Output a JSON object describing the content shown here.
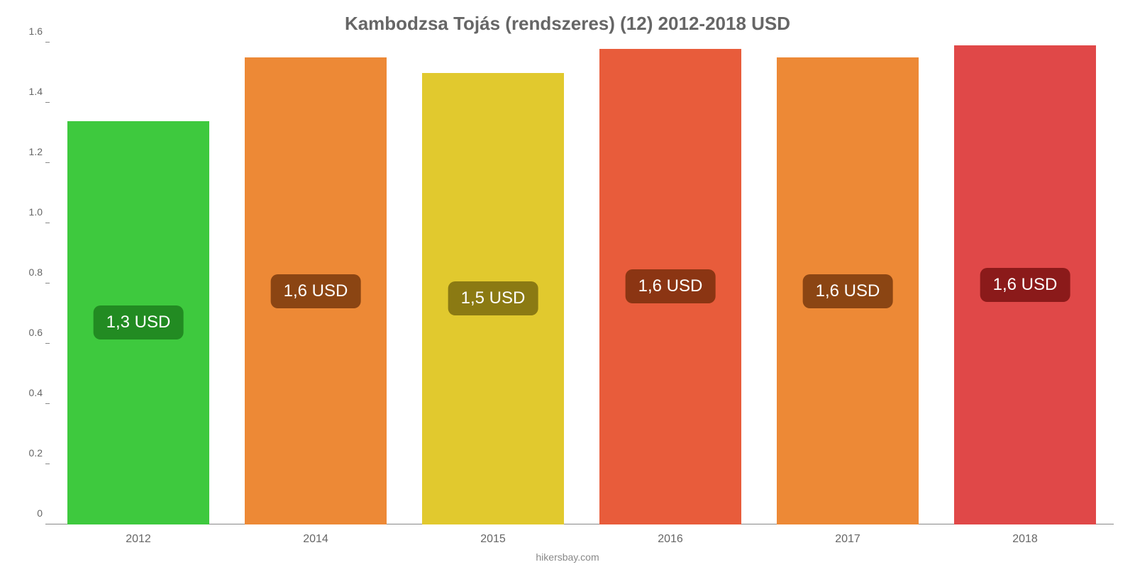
{
  "chart": {
    "type": "bar",
    "title": "Kambodzsa Tojás (rendszeres) (12) 2012-2018 USD",
    "title_fontsize": 26,
    "title_color": "#666666",
    "background_color": "#ffffff",
    "source": "hikersbay.com",
    "source_fontsize": 14,
    "source_color": "#888888",
    "y_axis": {
      "min": 0,
      "max": 1.6,
      "ticks": [
        0,
        0.2,
        0.4,
        0.6,
        0.8,
        1.0,
        1.2,
        1.4,
        1.6
      ],
      "tick_labels": [
        "0",
        "0.2",
        "0.4",
        "0.6",
        "0.8",
        "1.0",
        "1.2",
        "1.4",
        "1.6"
      ],
      "label_fontsize": 14,
      "label_color": "#666666",
      "tick_color": "#888888"
    },
    "x_axis": {
      "label_fontsize": 16,
      "label_color": "#666666"
    },
    "baseline_color": "#888888",
    "bar_width_pct": 80,
    "value_label_fontsize": 24,
    "categories": [
      "2012",
      "2014",
      "2015",
      "2016",
      "2017",
      "2018"
    ],
    "values": [
      1.34,
      1.55,
      1.5,
      1.58,
      1.55,
      1.59
    ],
    "value_labels": [
      "1,3 USD",
      "1,6 USD",
      "1,5 USD",
      "1,6 USD",
      "1,6 USD",
      "1,6 USD"
    ],
    "bar_colors": [
      "#3ec93e",
      "#ed8936",
      "#e1c92e",
      "#e85c3b",
      "#ed8936",
      "#e04848"
    ],
    "label_bg_colors": [
      "#228b22",
      "#8b4513",
      "#8b7a13",
      "#8b3513",
      "#8b4513",
      "#8b1a1a"
    ]
  }
}
